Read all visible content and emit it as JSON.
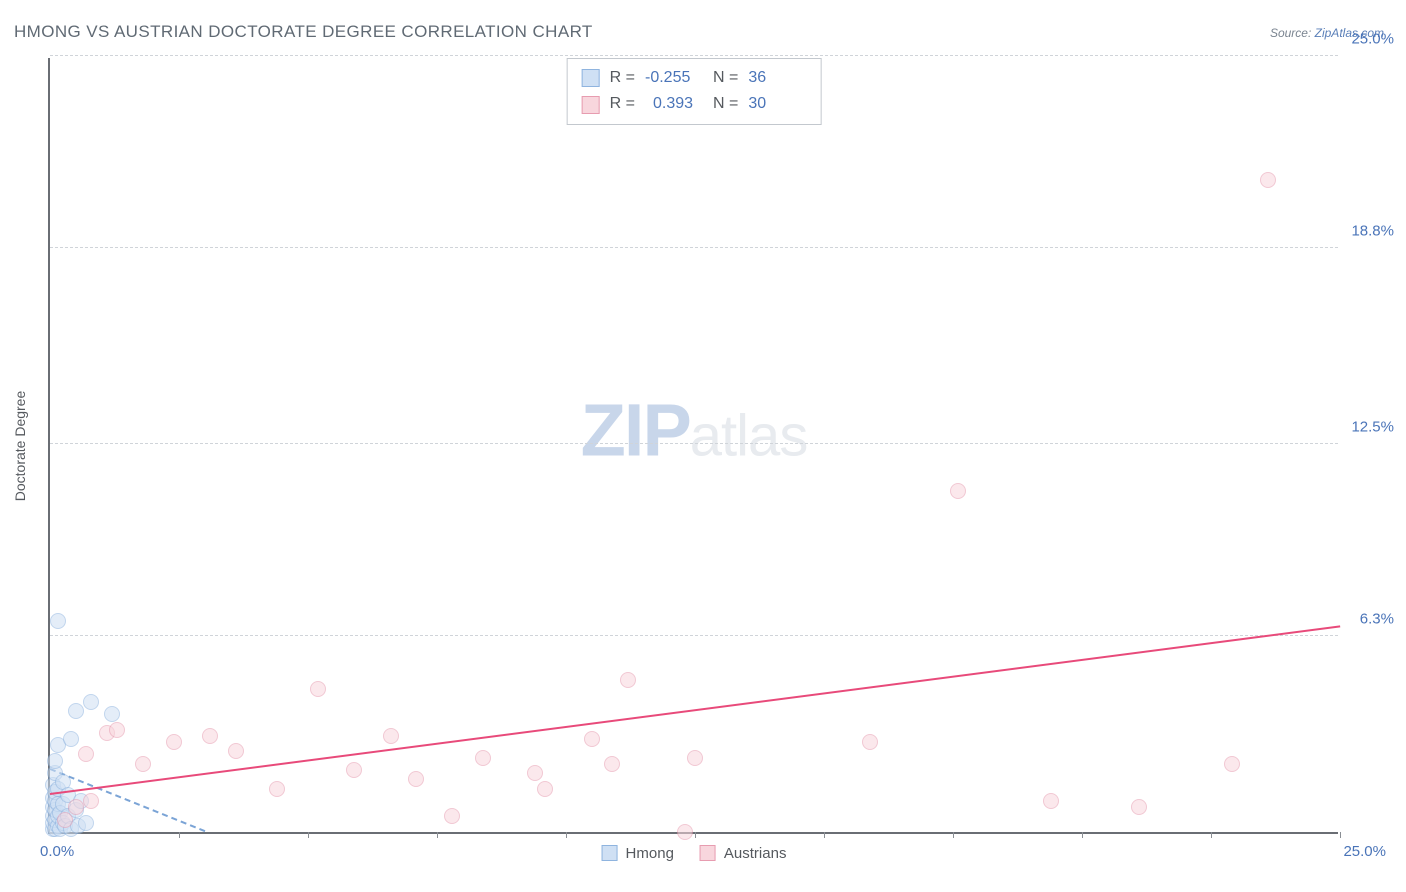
{
  "title": "HMONG VS AUSTRIAN DOCTORATE DEGREE CORRELATION CHART",
  "source_label": "Source:",
  "source_name": "ZipAtlas.com",
  "y_axis_title": "Doctorate Degree",
  "watermark": {
    "part1": "ZIP",
    "part2": "atlas"
  },
  "chart": {
    "type": "scatter",
    "xlim": [
      0,
      25.0
    ],
    "ylim": [
      0,
      25.0
    ],
    "x_origin_label": "0.0%",
    "x_max_label": "25.0%",
    "y_ticks": [
      {
        "v": 6.3,
        "label": "6.3%"
      },
      {
        "v": 12.5,
        "label": "12.5%"
      },
      {
        "v": 18.8,
        "label": "18.8%"
      },
      {
        "v": 25.0,
        "label": "25.0%"
      }
    ],
    "x_tick_positions": [
      2.5,
      5.0,
      7.5,
      10.0,
      12.5,
      15.0,
      17.5,
      20.0,
      22.5,
      25.0
    ],
    "grid_color": "#d0d4d9",
    "axis_color": "#6a6e74",
    "tick_label_color": "#4a74b8",
    "background_color": "#ffffff",
    "marker_radius": 8,
    "marker_stroke_width": 1,
    "series": [
      {
        "name": "Hmong",
        "fill": "#cfe0f4",
        "stroke": "#8fb4df",
        "fill_opacity": 0.55,
        "R": "-0.255",
        "N": "36",
        "trend": {
          "x1": 0.0,
          "y1": 2.0,
          "x2": 3.0,
          "y2": 0.0,
          "color": "#7ba4d6",
          "dash": true
        },
        "points": [
          [
            0.05,
            0.1
          ],
          [
            0.05,
            0.3
          ],
          [
            0.05,
            0.5
          ],
          [
            0.05,
            0.8
          ],
          [
            0.05,
            1.1
          ],
          [
            0.05,
            1.5
          ],
          [
            0.1,
            0.1
          ],
          [
            0.1,
            0.4
          ],
          [
            0.1,
            0.7
          ],
          [
            0.1,
            1.0
          ],
          [
            0.1,
            1.3
          ],
          [
            0.1,
            1.9
          ],
          [
            0.1,
            2.3
          ],
          [
            0.15,
            0.2
          ],
          [
            0.15,
            0.5
          ],
          [
            0.15,
            0.9
          ],
          [
            0.15,
            1.4
          ],
          [
            0.15,
            2.8
          ],
          [
            0.15,
            6.8
          ],
          [
            0.2,
            0.1
          ],
          [
            0.2,
            0.6
          ],
          [
            0.25,
            0.3
          ],
          [
            0.25,
            0.9
          ],
          [
            0.25,
            1.6
          ],
          [
            0.3,
            0.2
          ],
          [
            0.35,
            0.5
          ],
          [
            0.35,
            1.2
          ],
          [
            0.4,
            0.1
          ],
          [
            0.4,
            3.0
          ],
          [
            0.5,
            0.7
          ],
          [
            0.5,
            3.9
          ],
          [
            0.55,
            0.2
          ],
          [
            0.6,
            1.0
          ],
          [
            0.7,
            0.3
          ],
          [
            0.8,
            4.2
          ],
          [
            1.2,
            3.8
          ]
        ]
      },
      {
        "name": "Austrians",
        "fill": "#f8d6dd",
        "stroke": "#e79cb0",
        "fill_opacity": 0.55,
        "R": "0.393",
        "N": "30",
        "trend": {
          "x1": 0.0,
          "y1": 1.2,
          "x2": 25.0,
          "y2": 6.6,
          "color": "#e84a7a",
          "dash": false
        },
        "points": [
          [
            0.3,
            0.4
          ],
          [
            0.5,
            0.8
          ],
          [
            0.7,
            2.5
          ],
          [
            0.8,
            1.0
          ],
          [
            1.1,
            3.2
          ],
          [
            1.3,
            3.3
          ],
          [
            1.8,
            2.2
          ],
          [
            2.4,
            2.9
          ],
          [
            3.1,
            3.1
          ],
          [
            3.6,
            2.6
          ],
          [
            4.4,
            1.4
          ],
          [
            5.2,
            4.6
          ],
          [
            5.9,
            2.0
          ],
          [
            6.6,
            3.1
          ],
          [
            7.1,
            1.7
          ],
          [
            7.8,
            0.5
          ],
          [
            8.4,
            2.4
          ],
          [
            9.4,
            1.9
          ],
          [
            9.6,
            1.4
          ],
          [
            10.5,
            3.0
          ],
          [
            10.9,
            2.2
          ],
          [
            11.2,
            4.9
          ],
          [
            12.3,
            0.0
          ],
          [
            12.5,
            2.4
          ],
          [
            15.9,
            2.9
          ],
          [
            17.6,
            11.0
          ],
          [
            19.4,
            1.0
          ],
          [
            21.1,
            0.8
          ],
          [
            22.9,
            2.2
          ],
          [
            23.6,
            21.0
          ]
        ]
      }
    ]
  },
  "legend_top": {
    "r_label": "R =",
    "n_label": "N ="
  },
  "legend_bottom_items": [
    "Hmong",
    "Austrians"
  ]
}
